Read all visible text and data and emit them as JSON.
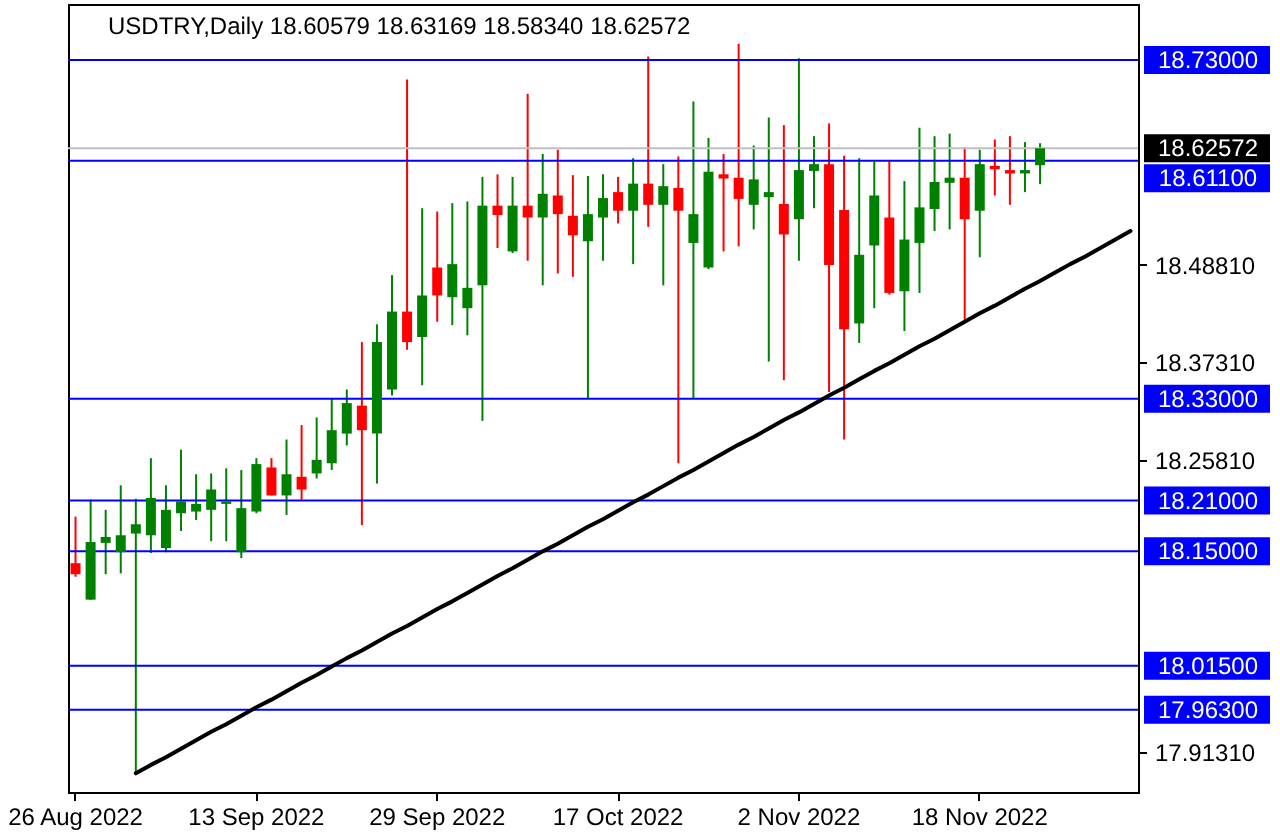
{
  "chart_data": {
    "type": "candlestick",
    "title": "USDTRY,Daily  18.60579 18.63169 18.58340 18.62572",
    "categories": [
      "26 Aug 2022",
      null,
      null,
      null,
      null,
      null,
      null,
      null,
      null,
      null,
      null,
      null,
      "13 Sep 2022",
      null,
      null,
      null,
      null,
      null,
      null,
      null,
      null,
      null,
      null,
      null,
      "29 Sep 2022",
      null,
      null,
      null,
      null,
      null,
      null,
      null,
      null,
      null,
      null,
      null,
      "17 Oct 2022",
      null,
      null,
      null,
      null,
      null,
      null,
      null,
      null,
      null,
      null,
      null,
      "2 Nov 2022",
      null,
      null,
      null,
      null,
      null,
      null,
      null,
      null,
      null,
      null,
      null,
      "18 Nov 2022",
      null,
      null,
      null,
      null,
      null,
      null,
      null,
      null,
      null,
      null
    ],
    "ohlc": [
      [
        18.136,
        18.191,
        18.12,
        18.123
      ],
      [
        18.093,
        18.211,
        18.093,
        18.161
      ],
      [
        18.16,
        18.199,
        18.123,
        18.167
      ],
      [
        18.149,
        18.228,
        18.124,
        18.169
      ],
      [
        18.171,
        18.212,
        17.888,
        18.182
      ],
      [
        18.169,
        18.26,
        18.148,
        18.213
      ],
      [
        18.154,
        18.228,
        18.149,
        18.199
      ],
      [
        18.195,
        18.27,
        18.174,
        18.209
      ],
      [
        18.197,
        18.241,
        18.187,
        18.206
      ],
      [
        18.199,
        18.242,
        18.162,
        18.223
      ],
      [
        18.206,
        18.248,
        18.162,
        18.209
      ],
      [
        18.149,
        18.246,
        18.142,
        18.201
      ],
      [
        18.197,
        18.26,
        18.195,
        18.253
      ],
      [
        18.249,
        18.26,
        18.216,
        18.216
      ],
      [
        18.216,
        18.282,
        18.193,
        18.241
      ],
      [
        18.238,
        18.299,
        18.211,
        18.223
      ],
      [
        18.242,
        18.308,
        18.236,
        18.258
      ],
      [
        18.254,
        18.33,
        18.246,
        18.293
      ],
      [
        18.289,
        18.341,
        18.275,
        18.325
      ],
      [
        18.322,
        18.397,
        18.181,
        18.293
      ],
      [
        18.289,
        18.418,
        18.23,
        18.397
      ],
      [
        18.341,
        18.476,
        18.334,
        18.433
      ],
      [
        18.433,
        18.707,
        18.388,
        18.397
      ],
      [
        18.403,
        18.555,
        18.346,
        18.452
      ],
      [
        18.485,
        18.551,
        18.421,
        18.452
      ],
      [
        18.45,
        18.561,
        18.417,
        18.489
      ],
      [
        18.437,
        18.563,
        18.405,
        18.461
      ],
      [
        18.464,
        18.592,
        18.304,
        18.558
      ],
      [
        18.558,
        18.595,
        18.508,
        18.547
      ],
      [
        18.504,
        18.592,
        18.502,
        18.558
      ],
      [
        18.558,
        18.69,
        18.493,
        18.544
      ],
      [
        18.544,
        18.619,
        18.464,
        18.572
      ],
      [
        18.57,
        18.624,
        18.478,
        18.548
      ],
      [
        18.546,
        18.594,
        18.474,
        18.523
      ],
      [
        18.516,
        18.593,
        18.331,
        18.548
      ],
      [
        18.544,
        18.595,
        18.493,
        18.567
      ],
      [
        18.574,
        18.592,
        18.537,
        18.552
      ],
      [
        18.552,
        18.614,
        18.489,
        18.584
      ],
      [
        18.584,
        18.734,
        18.533,
        18.559
      ],
      [
        18.559,
        18.607,
        18.464,
        18.581
      ],
      [
        18.579,
        18.616,
        18.254,
        18.552
      ],
      [
        18.514,
        18.681,
        18.331,
        18.548
      ],
      [
        18.485,
        18.638,
        18.483,
        18.598
      ],
      [
        18.595,
        18.619,
        18.504,
        18.59
      ],
      [
        18.591,
        18.749,
        18.51,
        18.566
      ],
      [
        18.559,
        18.629,
        18.53,
        18.589
      ],
      [
        18.568,
        18.662,
        18.374,
        18.574
      ],
      [
        18.56,
        18.653,
        18.352,
        18.524
      ],
      [
        18.542,
        18.732,
        18.493,
        18.6
      ],
      [
        18.599,
        18.64,
        18.555,
        18.607
      ],
      [
        18.607,
        18.655,
        18.338,
        18.488
      ],
      [
        18.553,
        18.617,
        18.282,
        18.412
      ],
      [
        18.419,
        18.614,
        18.396,
        18.5
      ],
      [
        18.511,
        18.61,
        18.437,
        18.57
      ],
      [
        18.544,
        18.612,
        18.453,
        18.455
      ],
      [
        18.457,
        18.587,
        18.41,
        18.518
      ],
      [
        18.514,
        18.65,
        18.455,
        18.556
      ],
      [
        18.554,
        18.64,
        18.528,
        18.586
      ],
      [
        18.585,
        18.643,
        18.53,
        18.591
      ],
      [
        18.591,
        18.627,
        18.419,
        18.542
      ],
      [
        18.552,
        18.624,
        18.497,
        18.607
      ],
      [
        18.605,
        18.636,
        18.57,
        18.601
      ],
      [
        18.6,
        18.64,
        18.559,
        18.596
      ],
      [
        18.596,
        18.633,
        18.574,
        18.6
      ],
      [
        18.60579,
        18.63169,
        18.5834,
        18.62572
      ],
      null,
      null,
      null,
      null,
      null,
      null
    ],
    "colors": [
      "#ff0000",
      "#008000",
      "#008000",
      "#008000",
      "#008000",
      "#008000",
      "#008000",
      "#008000",
      "#008000",
      "#008000",
      "#008000",
      "#008000",
      "#008000",
      "#ff0000",
      "#008000",
      "#ff0000",
      "#008000",
      "#008000",
      "#008000",
      "#ff0000",
      "#008000",
      "#008000",
      "#ff0000",
      "#008000",
      "#ff0000",
      "#008000",
      "#008000",
      "#008000",
      "#ff0000",
      "#008000",
      "#ff0000",
      "#008000",
      "#ff0000",
      "#ff0000",
      "#008000",
      "#008000",
      "#ff0000",
      "#008000",
      "#ff0000",
      "#008000",
      "#ff0000",
      "#008000",
      "#008000",
      "#ff0000",
      "#ff0000",
      "#008000",
      "#008000",
      "#ff0000",
      "#008000",
      "#008000",
      "#ff0000",
      "#ff0000",
      "#008000",
      "#008000",
      "#ff0000",
      "#008000",
      "#008000",
      "#008000",
      "#008000",
      "#ff0000",
      "#008000",
      "#ff0000",
      "#ff0000",
      "#008000",
      "#008000",
      null,
      null,
      null,
      null,
      null,
      null
    ],
    "series": [
      {
        "type": "line",
        "color": "#000000",
        "values": [
          null,
          null,
          null,
          null,
          17.888,
          17.898,
          17.907,
          17.917,
          17.927,
          17.937,
          17.946,
          17.956,
          17.966,
          17.975,
          17.985,
          17.995,
          18.004,
          18.014,
          18.024,
          18.033,
          18.043,
          18.053,
          18.062,
          18.072,
          18.082,
          18.091,
          18.101,
          18.111,
          18.121,
          18.13,
          18.14,
          18.15,
          18.159,
          18.169,
          18.179,
          18.188,
          18.198,
          18.208,
          18.217,
          18.227,
          18.237,
          18.246,
          18.256,
          18.266,
          18.276,
          18.285,
          18.295,
          18.305,
          18.314,
          18.324,
          18.334,
          18.343,
          18.353,
          18.363,
          18.372,
          18.382,
          18.392,
          18.401,
          18.411,
          18.421,
          18.431,
          18.44,
          18.45,
          18.46,
          18.469,
          18.479,
          18.489,
          18.498,
          18.508,
          18.518,
          18.528
        ]
      }
    ],
    "ylim": [
      17.866,
      18.796
    ],
    "yticks": [
      {
        "value": 18.4881,
        "label": "18.48810"
      },
      {
        "value": 18.3731,
        "label": "18.37310"
      },
      {
        "value": 18.2581,
        "label": "18.25810"
      },
      {
        "value": 17.9131,
        "label": "17.91310"
      }
    ],
    "ref_lines": [
      {
        "axis": "y",
        "value": 18.73,
        "label": "18.73000",
        "color": "#0000ff"
      },
      {
        "axis": "y",
        "value": 18.62572,
        "label": "18.62572",
        "color": "#c0c0c0"
      },
      {
        "axis": "y",
        "value": 18.611,
        "label": "18.61100",
        "color": "#0000ff"
      },
      {
        "axis": "y",
        "value": 18.33,
        "label": "18.33000",
        "color": "#0000ff"
      },
      {
        "axis": "y",
        "value": 18.21,
        "label": "18.21000",
        "color": "#0000ff"
      },
      {
        "axis": "y",
        "value": 18.15,
        "label": "18.15000",
        "color": "#0000ff"
      },
      {
        "axis": "y",
        "value": 18.015,
        "label": "18.01500",
        "color": "#0000ff"
      },
      {
        "axis": "y",
        "value": 17.963,
        "label": "17.96300",
        "color": "#0000ff"
      }
    ],
    "grid": false
  }
}
